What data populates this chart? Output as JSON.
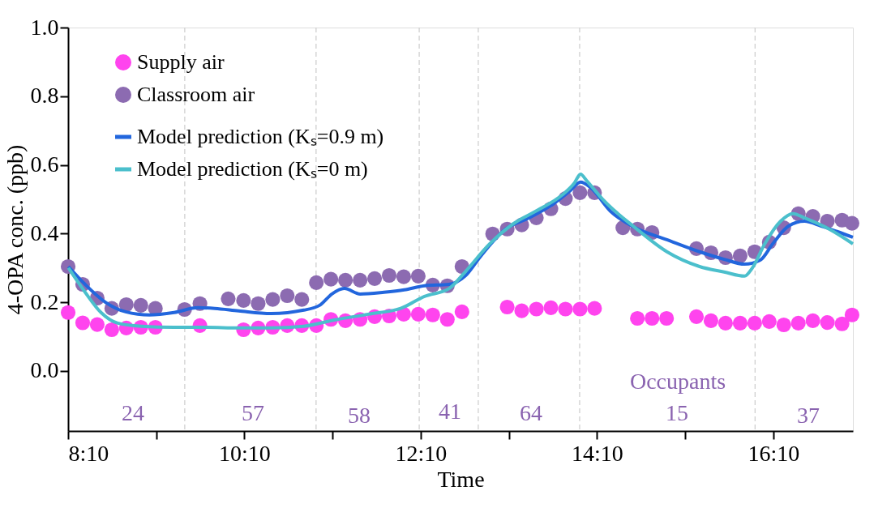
{
  "chart_data": {
    "type": "scatter",
    "xlabel": "Time",
    "ylabel": "4-OPA conc. (ppb)",
    "xlim": [
      8.1667,
      17.07
    ],
    "ylim": [
      -0.175,
      1.0
    ],
    "xticks": [
      {
        "value": 8.1667,
        "label": "8:10"
      },
      {
        "value": 9.1667,
        "label": null
      },
      {
        "value": 10.1667,
        "label": "10:10"
      },
      {
        "value": 11.1667,
        "label": null
      },
      {
        "value": 12.1667,
        "label": "12:10"
      },
      {
        "value": 13.1667,
        "label": null
      },
      {
        "value": 14.1667,
        "label": "14:10"
      },
      {
        "value": 15.1667,
        "label": null
      },
      {
        "value": 16.1667,
        "label": "16:10"
      }
    ],
    "yticks": [
      {
        "value": 0,
        "label": "0.0"
      },
      {
        "value": 0.2,
        "label": "0.2"
      },
      {
        "value": 0.4,
        "label": "0.4"
      },
      {
        "value": 0.6,
        "label": "0.6"
      },
      {
        "value": 0.8,
        "label": "0.8"
      },
      {
        "value": 1.0,
        "label": "1.0"
      }
    ],
    "grid": false,
    "legend": "top left",
    "series": [
      {
        "name": "Supply air",
        "marker": "circle",
        "color": "#ff44ee",
        "x": [
          8.167,
          8.332,
          8.497,
          8.662,
          8.827,
          8.992,
          9.157,
          9.662,
          10.157,
          10.323,
          10.488,
          10.653,
          10.818,
          10.983,
          11.148,
          11.313,
          11.479,
          11.644,
          11.809,
          11.974,
          12.139,
          12.304,
          12.469,
          12.635,
          13.148,
          13.313,
          13.479,
          13.644,
          13.809,
          13.974,
          14.139,
          14.625,
          14.791,
          14.956,
          15.295,
          15.46,
          15.625,
          15.791,
          15.956,
          16.121,
          16.286,
          16.451,
          16.616,
          16.781,
          16.947,
          17.06
        ],
        "values": [
          0.17,
          0.14,
          0.135,
          0.12,
          0.125,
          0.127,
          0.127,
          0.132,
          0.12,
          0.125,
          0.127,
          0.132,
          0.132,
          0.132,
          0.15,
          0.146,
          0.15,
          0.158,
          0.16,
          0.165,
          0.165,
          0.163,
          0.15,
          0.172,
          0.186,
          0.175,
          0.18,
          0.184,
          0.18,
          0.18,
          0.182,
          0.153,
          0.153,
          0.153,
          0.158,
          0.146,
          0.139,
          0.139,
          0.139,
          0.144,
          0.134,
          0.139,
          0.146,
          0.141,
          0.137,
          0.163
        ]
      },
      {
        "name": "Classroom air",
        "marker": "circle",
        "color": "#8c6bb1",
        "x": [
          8.167,
          8.332,
          8.497,
          8.662,
          8.827,
          8.992,
          9.157,
          9.488,
          9.662,
          9.983,
          10.157,
          10.323,
          10.488,
          10.653,
          10.818,
          10.983,
          11.148,
          11.313,
          11.479,
          11.644,
          11.809,
          11.974,
          12.139,
          12.304,
          12.469,
          12.635,
          12.983,
          13.148,
          13.313,
          13.479,
          13.644,
          13.809,
          13.974,
          14.139,
          14.46,
          14.625,
          14.791,
          15.295,
          15.46,
          15.625,
          15.791,
          15.956,
          16.121,
          16.286,
          16.451,
          16.616,
          16.781,
          16.947,
          17.06
        ],
        "values": [
          0.304,
          0.252,
          0.212,
          0.182,
          0.193,
          0.191,
          0.182,
          0.179,
          0.196,
          0.21,
          0.205,
          0.196,
          0.208,
          0.219,
          0.208,
          0.257,
          0.267,
          0.264,
          0.264,
          0.269,
          0.278,
          0.274,
          0.276,
          0.25,
          0.248,
          0.304,
          0.399,
          0.413,
          0.425,
          0.446,
          0.472,
          0.502,
          0.519,
          0.519,
          0.417,
          0.413,
          0.403,
          0.356,
          0.344,
          0.33,
          0.335,
          0.347,
          0.375,
          0.417,
          0.458,
          0.45,
          0.436,
          0.439,
          0.43
        ]
      },
      {
        "name": "Model prediction (Kₛ=0.9 m)",
        "type": "line",
        "color": "#2266dd",
        "x": [
          8.17,
          8.36,
          8.59,
          8.82,
          9.09,
          9.37,
          9.64,
          9.83,
          10.1,
          10.47,
          10.84,
          11.02,
          11.16,
          11.3,
          11.48,
          11.75,
          11.98,
          12.21,
          12.49,
          12.67,
          12.85,
          13.13,
          13.4,
          13.68,
          13.86,
          13.98,
          14.09,
          14.32,
          14.6,
          14.96,
          15.33,
          15.61,
          15.84,
          16.02,
          16.16,
          16.34,
          16.52,
          16.71,
          16.89,
          17.07
        ],
        "values": [
          0.304,
          0.252,
          0.2,
          0.172,
          0.163,
          0.17,
          0.184,
          0.182,
          0.175,
          0.167,
          0.177,
          0.191,
          0.224,
          0.24,
          0.224,
          0.229,
          0.236,
          0.248,
          0.252,
          0.276,
          0.335,
          0.413,
          0.446,
          0.488,
          0.524,
          0.55,
          0.535,
          0.465,
          0.417,
          0.382,
          0.347,
          0.325,
          0.311,
          0.323,
          0.37,
          0.422,
          0.436,
          0.422,
          0.406,
          0.389
        ]
      },
      {
        "name": "Model prediction (Kₛ=0 m)",
        "type": "line",
        "color": "#4bbfcc",
        "x": [
          8.17,
          8.36,
          8.54,
          8.73,
          9.0,
          9.37,
          9.74,
          10.1,
          10.47,
          10.84,
          11.2,
          11.57,
          11.94,
          12.21,
          12.49,
          12.67,
          12.95,
          13.22,
          13.5,
          13.77,
          13.91,
          13.98,
          14.05,
          14.23,
          14.6,
          14.96,
          15.33,
          15.61,
          15.84,
          15.93,
          16.07,
          16.25,
          16.39,
          16.52,
          16.8,
          17.07
        ],
        "values": [
          0.3,
          0.229,
          0.17,
          0.139,
          0.13,
          0.127,
          0.127,
          0.125,
          0.125,
          0.13,
          0.149,
          0.165,
          0.182,
          0.217,
          0.24,
          0.288,
          0.37,
          0.429,
          0.469,
          0.512,
          0.547,
          0.573,
          0.554,
          0.5,
          0.417,
          0.347,
          0.304,
          0.288,
          0.276,
          0.3,
          0.37,
          0.436,
          0.458,
          0.446,
          0.413,
          0.37
        ]
      }
    ],
    "ref_lines": [
      {
        "axis": "x",
        "value": 9.49,
        "color": "#cccccc",
        "line_style": "dashed"
      },
      {
        "axis": "x",
        "value": 10.98,
        "color": "#cccccc",
        "line_style": "dashed"
      },
      {
        "axis": "x",
        "value": 12.15,
        "color": "#cccccc",
        "line_style": "dashed"
      },
      {
        "axis": "x",
        "value": 12.82,
        "color": "#cccccc",
        "line_style": "dashed"
      },
      {
        "axis": "x",
        "value": 13.97,
        "color": "#cccccc",
        "line_style": "dashed"
      },
      {
        "axis": "x",
        "value": 15.96,
        "color": "#cccccc",
        "line_style": "dashed"
      }
    ],
    "annotations": [
      "Occupants",
      "24",
      "57",
      "58",
      "41",
      "64",
      "15",
      "37"
    ]
  }
}
